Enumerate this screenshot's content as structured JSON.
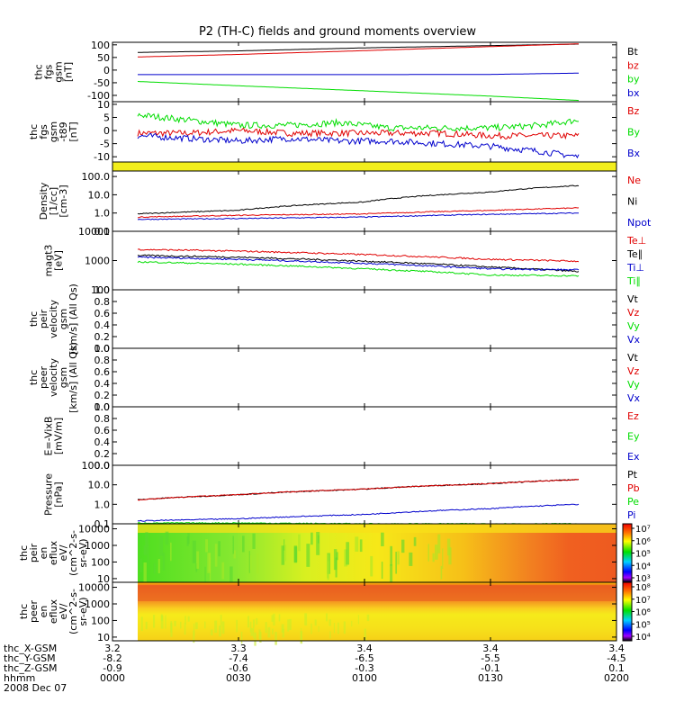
{
  "title": "P2 (TH-C) fields and ground moments overview",
  "colors": {
    "black": "#000000",
    "red": "#e00000",
    "green": "#00dd00",
    "blue": "#0000cc",
    "yellow": "#f2ee1c"
  },
  "chart_data": [
    {
      "id": "fgs_gsm",
      "type": "line",
      "ylabel": [
        "thc",
        "fgs",
        "gsm",
        "[nT]"
      ],
      "ylim": [
        -125,
        110
      ],
      "yscale": "linear",
      "yticks": [
        100,
        50,
        0,
        -50,
        -100
      ],
      "series": [
        {
          "name": "Bt",
          "color": "black",
          "x": [
            0.1,
            0.5,
            1.0,
            1.5,
            1.85
          ],
          "y": [
            70,
            76,
            88,
            97,
            103
          ]
        },
        {
          "name": "bz",
          "color": "red",
          "x": [
            0.1,
            0.5,
            1.0,
            1.5,
            1.85
          ],
          "y": [
            52,
            62,
            77,
            93,
            104
          ]
        },
        {
          "name": "by",
          "color": "green",
          "x": [
            0.1,
            0.5,
            1.0,
            1.5,
            1.85
          ],
          "y": [
            -45,
            -62,
            -82,
            -103,
            -120
          ]
        },
        {
          "name": "bx",
          "color": "blue",
          "x": [
            0.1,
            0.5,
            1.0,
            1.5,
            1.85
          ],
          "y": [
            -18,
            -18,
            -18,
            -17,
            -12
          ]
        }
      ]
    },
    {
      "id": "fgs_gsm_dt",
      "type": "line",
      "ylabel": [
        "thc",
        "fgs",
        "gsm",
        "-t89",
        "[nT]"
      ],
      "ylim": [
        -12,
        11
      ],
      "yscale": "linear",
      "yticks": [
        10,
        5,
        0,
        -5,
        -10
      ],
      "series": [
        {
          "name": "Bz",
          "color": "red",
          "x": [
            0.1,
            0.3,
            0.5,
            0.7,
            0.9,
            1.1,
            1.3,
            1.5,
            1.7,
            1.85
          ],
          "y": [
            -1,
            -1,
            0,
            -1,
            -1,
            -1,
            -1,
            -2,
            -2,
            -2
          ]
        },
        {
          "name": "By",
          "color": "green",
          "x": [
            0.1,
            0.3,
            0.5,
            0.7,
            0.9,
            1.1,
            1.3,
            1.5,
            1.7,
            1.85
          ],
          "y": [
            6,
            4,
            2,
            2,
            3,
            1,
            1,
            1,
            2,
            4
          ]
        },
        {
          "name": "Bx",
          "color": "blue",
          "x": [
            0.1,
            0.3,
            0.5,
            0.7,
            0.9,
            1.1,
            1.3,
            1.5,
            1.7,
            1.85
          ],
          "y": [
            -2,
            -3,
            -4,
            -3,
            -4,
            -4,
            -5,
            -6,
            -8,
            -10
          ]
        }
      ]
    },
    {
      "id": "density",
      "type": "line",
      "ylabel": [
        "Density",
        "[1/cc]",
        "[cm-3]"
      ],
      "ylim": [
        0.1,
        200
      ],
      "yscale": "log",
      "yticks": [
        100.0,
        10.0,
        1.0,
        0.1
      ],
      "yticklabels": [
        "100.0",
        "10.0",
        "1.0",
        "0.1"
      ],
      "series": [
        {
          "name": "Ne",
          "color": "red",
          "x": [
            0.1,
            0.5,
            1.0,
            1.5,
            1.85
          ],
          "y": [
            0.6,
            0.75,
            0.9,
            1.4,
            1.9
          ]
        },
        {
          "name": "Ni",
          "color": "black",
          "x": [
            0.1,
            0.5,
            1.0,
            1.5,
            1.85
          ],
          "y": [
            0.9,
            1.4,
            4,
            14,
            32
          ]
        },
        {
          "name": "Npot",
          "color": "blue",
          "x": [
            0.1,
            0.5,
            1.0,
            1.5,
            1.85
          ],
          "y": [
            0.45,
            0.5,
            0.6,
            0.85,
            1.0
          ]
        }
      ]
    },
    {
      "id": "temperature",
      "type": "line",
      "ylabel": [
        "magt3",
        "[eV]"
      ],
      "ylim": [
        100,
        10000
      ],
      "yscale": "log",
      "yticks": [
        10000,
        1000,
        100
      ],
      "yticklabels": [
        "10000",
        "1000",
        "100"
      ],
      "series": [
        {
          "name": "Te⊥",
          "color": "red",
          "x": [
            0.1,
            0.5,
            1.0,
            1.5,
            1.85
          ],
          "y": [
            2400,
            2100,
            1600,
            1100,
            950
          ]
        },
        {
          "name": "Te∥",
          "color": "black",
          "x": [
            0.1,
            0.5,
            1.0,
            1.5,
            1.85
          ],
          "y": [
            1500,
            1300,
            950,
            600,
            420
          ]
        },
        {
          "name": "Ti⊥",
          "color": "blue",
          "x": [
            0.1,
            0.5,
            1.0,
            1.5,
            1.85
          ],
          "y": [
            1300,
            1100,
            800,
            520,
            480
          ]
        },
        {
          "name": "Ti∥",
          "color": "green",
          "x": [
            0.1,
            0.5,
            1.0,
            1.5,
            1.85
          ],
          "y": [
            900,
            750,
            520,
            320,
            300
          ]
        }
      ]
    },
    {
      "id": "peir_velocity",
      "type": "line",
      "ylabel": [
        "thc",
        "peir",
        "velocity",
        "gsm",
        "[km/s] (All Qs)"
      ],
      "ylim": [
        0,
        1
      ],
      "yscale": "linear",
      "yticks": [
        1.0,
        0.8,
        0.6,
        0.4,
        0.2,
        0.0
      ],
      "yticklabels": [
        "1.0",
        "0.8",
        "0.6",
        "0.4",
        "0.2",
        "0.0"
      ],
      "series": [
        {
          "name": "Vt",
          "color": "black"
        },
        {
          "name": "Vz",
          "color": "red"
        },
        {
          "name": "Vy",
          "color": "green"
        },
        {
          "name": "Vx",
          "color": "blue"
        }
      ]
    },
    {
      "id": "peer_velocity",
      "type": "line",
      "ylabel": [
        "thc",
        "peer",
        "velocity",
        "gsm",
        "[km/s] (All Qs)"
      ],
      "ylim": [
        0,
        1
      ],
      "yscale": "linear",
      "yticks": [
        1.0,
        0.8,
        0.6,
        0.4,
        0.2,
        0.0
      ],
      "yticklabels": [
        "1.0",
        "0.8",
        "0.6",
        "0.4",
        "0.2",
        "0.0"
      ],
      "series": [
        {
          "name": "Vt",
          "color": "black"
        },
        {
          "name": "Vz",
          "color": "red"
        },
        {
          "name": "Vy",
          "color": "green"
        },
        {
          "name": "Vx",
          "color": "blue"
        }
      ]
    },
    {
      "id": "efield",
      "type": "line",
      "ylabel": [
        "E=-VixB",
        "[mV/m]"
      ],
      "ylim": [
        0,
        1
      ],
      "yscale": "linear",
      "yticks": [
        1.0,
        0.8,
        0.6,
        0.4,
        0.2,
        0.0
      ],
      "yticklabels": [
        "1.0",
        "0.8",
        "0.6",
        "0.4",
        "0.2",
        "0.0"
      ],
      "series": [
        {
          "name": "Ez",
          "color": "red"
        },
        {
          "name": "Ey",
          "color": "green"
        },
        {
          "name": "Ex",
          "color": "blue"
        }
      ]
    },
    {
      "id": "pressure",
      "type": "line",
      "ylabel": [
        "Pressure",
        "[nPa]"
      ],
      "ylim": [
        0.1,
        100
      ],
      "yscale": "log",
      "yticks": [
        100.0,
        10.0,
        1.0,
        0.1
      ],
      "yticklabels": [
        "100.0",
        "10.0",
        "1.0",
        "0.1"
      ],
      "series": [
        {
          "name": "Pt",
          "color": "black",
          "x": [
            0.1,
            0.5,
            1.0,
            1.5,
            1.85
          ],
          "y": [
            1.7,
            3.1,
            6.0,
            11.5,
            18.5
          ]
        },
        {
          "name": "Pb",
          "color": "red",
          "x": [
            0.1,
            0.5,
            1.0,
            1.5,
            1.85
          ],
          "y": [
            1.7,
            3.1,
            6.0,
            11.5,
            18.5
          ]
        },
        {
          "name": "Pe",
          "color": "green",
          "x": [
            0.1,
            0.5,
            1.0,
            1.5,
            1.85
          ],
          "y": [
            0.11,
            0.11,
            0.1,
            0.1,
            0.1
          ]
        },
        {
          "name": "Pi",
          "color": "blue",
          "x": [
            0.1,
            0.5,
            1.0,
            1.5,
            1.85
          ],
          "y": [
            0.14,
            0.18,
            0.3,
            0.6,
            1.0
          ]
        }
      ]
    },
    {
      "id": "peir_en_eflux",
      "type": "heatmap",
      "ylabel": [
        "thc",
        "peir",
        "en",
        "eflux",
        "eV/",
        "(cm^2-s-",
        "sr-eV)"
      ],
      "yscale": "log",
      "ylim": [
        6,
        20000
      ],
      "yticks": [
        10000,
        1000,
        100,
        10
      ],
      "yticklabels": [
        "10000",
        "1000",
        "100",
        "10"
      ],
      "colorbar": {
        "ticks": [
          "10⁷",
          "10⁶",
          "10⁵",
          "10⁴",
          "10³"
        ]
      }
    },
    {
      "id": "peer_en_eflux",
      "type": "heatmap",
      "ylabel": [
        "thc",
        "peer",
        "en",
        "eflux",
        "eV/",
        "(cm^2-s-",
        "sr-eV)"
      ],
      "yscale": "log",
      "ylim": [
        6,
        20000
      ],
      "yticks": [
        10000,
        1000,
        100,
        10
      ],
      "yticklabels": [
        "10000",
        "1000",
        "100",
        "10"
      ],
      "colorbar": {
        "ticks": [
          "10⁸",
          "10⁷",
          "10⁶",
          "10⁵",
          "10⁴"
        ]
      }
    }
  ],
  "xaxis": {
    "xlim": [
      0,
      2
    ],
    "positions": [
      0,
      0.5,
      1.0,
      1.5,
      2.0
    ],
    "rows": [
      {
        "label": "thc_X-GSM",
        "values": [
          "3.2",
          "3.3",
          "3.4",
          "3.4",
          "3.4"
        ]
      },
      {
        "label": "thc_Y-GSM",
        "values": [
          "-8.2",
          "-7.4",
          "-6.5",
          "-5.5",
          "-4.5"
        ]
      },
      {
        "label": "thc_Z-GSM",
        "values": [
          "-0.9",
          "-0.6",
          "-0.3",
          "-0.1",
          "0.1"
        ]
      },
      {
        "label": "hhmm",
        "values": [
          "0000",
          "0030",
          "0100",
          "0130",
          "0200"
        ]
      }
    ],
    "date": "2008 Dec 07"
  }
}
